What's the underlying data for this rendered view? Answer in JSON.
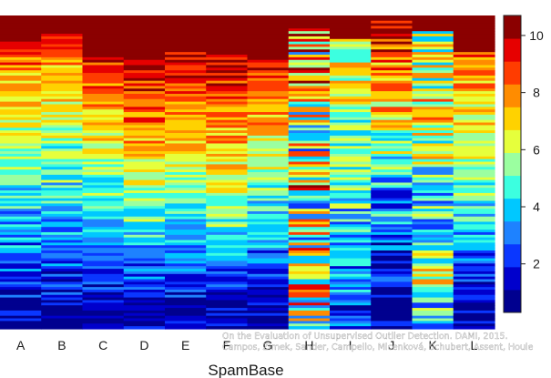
{
  "chart_data": {
    "type": "heatmap",
    "xlabel": "SpamBase",
    "categories": [
      "A",
      "B",
      "C",
      "D",
      "E",
      "F",
      "G",
      "H",
      "I",
      "J",
      "K",
      "L"
    ],
    "colorbar": {
      "ticks": [
        2,
        4,
        6,
        8,
        10
      ],
      "range": [
        0.3,
        10.7
      ],
      "levels": 13,
      "colors": [
        "#00008f",
        "#0000cc",
        "#0a37ff",
        "#1e82ff",
        "#00c8ff",
        "#3cffe0",
        "#9bffa0",
        "#e6ff3c",
        "#ffd200",
        "#ff8c00",
        "#ff3c00",
        "#e60000",
        "#8b0000"
      ],
      "placement": "right"
    },
    "rows": 120,
    "columns": [
      {
        "name": "A",
        "top_flat_rows": 8,
        "profile": [
          [
            0,
            9.8
          ],
          [
            0.07,
            8.6
          ],
          [
            0.15,
            7.3
          ],
          [
            0.32,
            6.0
          ],
          [
            0.48,
            4.9
          ],
          [
            0.62,
            3.9
          ],
          [
            0.72,
            3.0
          ],
          [
            0.8,
            2.3
          ],
          [
            0.88,
            1.6
          ],
          [
            1.0,
            0.8
          ]
        ],
        "noise": 1.4
      },
      {
        "name": "B",
        "top_flat_rows": 7,
        "profile": [
          [
            0,
            9.5
          ],
          [
            0.07,
            8.4
          ],
          [
            0.15,
            7.2
          ],
          [
            0.32,
            5.9
          ],
          [
            0.48,
            4.8
          ],
          [
            0.62,
            3.8
          ],
          [
            0.72,
            2.9
          ],
          [
            0.8,
            2.2
          ],
          [
            0.88,
            1.5
          ],
          [
            1.0,
            0.8
          ]
        ],
        "noise": 1.4
      },
      {
        "name": "C",
        "top_flat_rows": 14,
        "profile": [
          [
            0,
            9.8
          ],
          [
            0.1,
            8.5
          ],
          [
            0.2,
            7.4
          ],
          [
            0.32,
            6.4
          ],
          [
            0.45,
            5.4
          ],
          [
            0.6,
            4.1
          ],
          [
            0.72,
            3.0
          ],
          [
            0.82,
            2.0
          ],
          [
            0.9,
            1.3
          ],
          [
            1.0,
            0.7
          ]
        ],
        "noise": 1.2
      },
      {
        "name": "D",
        "top_flat_rows": 14,
        "profile": [
          [
            0,
            10.4
          ],
          [
            0.1,
            9.5
          ],
          [
            0.2,
            8.6
          ],
          [
            0.32,
            7.5
          ],
          [
            0.45,
            6.3
          ],
          [
            0.58,
            5.0
          ],
          [
            0.7,
            3.6
          ],
          [
            0.8,
            2.6
          ],
          [
            0.9,
            1.5
          ],
          [
            1.0,
            0.7
          ]
        ],
        "noise": 1.3
      },
      {
        "name": "E",
        "top_flat_rows": 14,
        "profile": [
          [
            0,
            10.0
          ],
          [
            0.1,
            9.0
          ],
          [
            0.2,
            8.1
          ],
          [
            0.32,
            7.0
          ],
          [
            0.45,
            5.8
          ],
          [
            0.58,
            4.6
          ],
          [
            0.7,
            3.4
          ],
          [
            0.8,
            2.4
          ],
          [
            0.9,
            1.4
          ],
          [
            1.0,
            0.7
          ]
        ],
        "noise": 1.3
      },
      {
        "name": "F",
        "top_flat_rows": 14,
        "profile": [
          [
            0,
            10.2
          ],
          [
            0.1,
            9.3
          ],
          [
            0.2,
            8.3
          ],
          [
            0.32,
            7.3
          ],
          [
            0.45,
            6.4
          ],
          [
            0.58,
            5.4
          ],
          [
            0.7,
            4.1
          ],
          [
            0.8,
            2.9
          ],
          [
            0.9,
            1.7
          ],
          [
            1.0,
            0.8
          ]
        ],
        "noise": 1.3
      },
      {
        "name": "G",
        "top_flat_rows": 17,
        "profile": [
          [
            0,
            9.3
          ],
          [
            0.1,
            8.3
          ],
          [
            0.22,
            7.3
          ],
          [
            0.35,
            6.3
          ],
          [
            0.48,
            5.2
          ],
          [
            0.6,
            4.0
          ],
          [
            0.72,
            3.0
          ],
          [
            0.82,
            2.1
          ],
          [
            0.9,
            1.4
          ],
          [
            1.0,
            0.7
          ]
        ],
        "noise": 1.4
      },
      {
        "name": "H",
        "top_flat_rows": 5,
        "profile": [
          [
            0,
            7.5
          ],
          [
            0.2,
            6.2
          ],
          [
            0.35,
            5.0
          ],
          [
            0.5,
            7.5
          ],
          [
            0.6,
            5.5
          ],
          [
            0.75,
            6.0
          ],
          [
            0.85,
            7.0
          ],
          [
            1.0,
            6.0
          ]
        ],
        "noise": 3.8
      },
      {
        "name": "I",
        "top_flat_rows": 9,
        "profile": [
          [
            0,
            6.5
          ],
          [
            0.15,
            6.0
          ],
          [
            0.3,
            5.4
          ],
          [
            0.45,
            4.8
          ],
          [
            0.6,
            4.1
          ],
          [
            0.72,
            3.5
          ],
          [
            0.82,
            3.2
          ],
          [
            0.92,
            2.5
          ],
          [
            1.0,
            1.8
          ]
        ],
        "noise": 1.9
      },
      {
        "name": "J",
        "top_flat_rows": 2,
        "profile": [
          [
            0,
            10.0
          ],
          [
            0.08,
            9.0
          ],
          [
            0.2,
            7.6
          ],
          [
            0.32,
            6.4
          ],
          [
            0.45,
            5.0
          ],
          [
            0.55,
            3.2
          ],
          [
            0.65,
            3.5
          ],
          [
            0.75,
            2.0
          ],
          [
            0.85,
            1.1
          ],
          [
            1.0,
            0.6
          ]
        ],
        "noise": 1.8
      },
      {
        "name": "K",
        "top_flat_rows": 6,
        "profile": [
          [
            0,
            5.5
          ],
          [
            0.12,
            6.0
          ],
          [
            0.25,
            6.5
          ],
          [
            0.4,
            6.0
          ],
          [
            0.55,
            4.5
          ],
          [
            0.65,
            4.0
          ],
          [
            0.72,
            5.0
          ],
          [
            0.8,
            6.0
          ],
          [
            0.88,
            5.0
          ],
          [
            1.0,
            3.5
          ]
        ],
        "noise": 2.3
      },
      {
        "name": "L",
        "top_flat_rows": 14,
        "profile": [
          [
            0,
            8.5
          ],
          [
            0.12,
            7.3
          ],
          [
            0.25,
            6.4
          ],
          [
            0.4,
            5.5
          ],
          [
            0.55,
            4.5
          ],
          [
            0.68,
            3.4
          ],
          [
            0.8,
            2.3
          ],
          [
            0.9,
            1.3
          ],
          [
            1.0,
            0.7
          ]
        ],
        "noise": 1.3
      }
    ]
  },
  "watermark": {
    "line1": "On the Evaluation of Unsupervised Outlier Detection. DAMI, 2015.",
    "line2": "Campos, Zimek, Sander, Campello, Micenková, Schubert, Assent, Houle"
  }
}
